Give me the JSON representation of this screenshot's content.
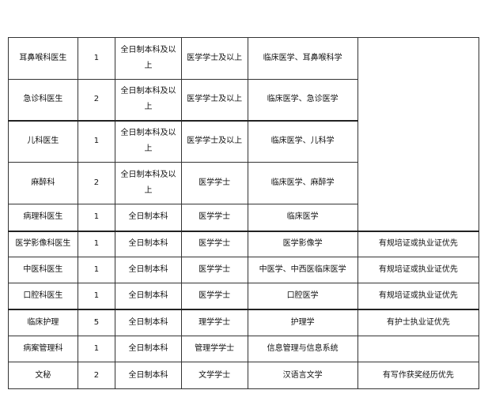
{
  "rows": [
    {
      "position": "耳鼻喉科医生",
      "count": "1",
      "education": "全日制本科及以上",
      "degree": "医学学士及以上",
      "major": "临床医学、耳鼻喉科学",
      "note": ""
    },
    {
      "position": "急诊科医生",
      "count": "2",
      "education": "全日制本科及以上",
      "degree": "医学学士及以上",
      "major": "临床医学、急诊医学",
      "note": ""
    },
    {
      "position": "儿科医生",
      "count": "1",
      "education": "全日制本科及以上",
      "degree": "医学学士及以上",
      "major": "临床医学、儿科学",
      "note": ""
    },
    {
      "position": "麻醉科",
      "count": "2",
      "education": "全日制本科及以上",
      "degree": "医学学士",
      "major": "临床医学、麻醉学",
      "note": ""
    },
    {
      "position": "病理科医生",
      "count": "1",
      "education": "全日制本科",
      "degree": "医学学士",
      "major": "临床医学",
      "note": ""
    },
    {
      "position": "医学影像科医生",
      "count": "1",
      "education": "全日制本科",
      "degree": "医学学士",
      "major": "医学影像学",
      "note": "有规培证或执业证优先"
    },
    {
      "position": "中医科医生",
      "count": "1",
      "education": "全日制本科",
      "degree": "医学学士",
      "major": "中医学、中西医临床医学",
      "note": "有规培证或执业证优先"
    },
    {
      "position": "口腔科医生",
      "count": "1",
      "education": "全日制本科",
      "degree": "医学学士",
      "major": "口腔医学",
      "note": "有规培证或执业证优先"
    },
    {
      "position": "临床护理",
      "count": "5",
      "education": "全日制本科",
      "degree": "理学学士",
      "major": "护理学",
      "note": "有护士执业证优先"
    },
    {
      "position": "病案管理科",
      "count": "1",
      "education": "全日制本科",
      "degree": "管理学学士",
      "major": "信息管理与信息系统",
      "note": ""
    },
    {
      "position": "文秘",
      "count": "2",
      "education": "全日制本科",
      "degree": "文学学士",
      "major": "汉语言文学",
      "note": "有写作获奖经历优先"
    }
  ]
}
